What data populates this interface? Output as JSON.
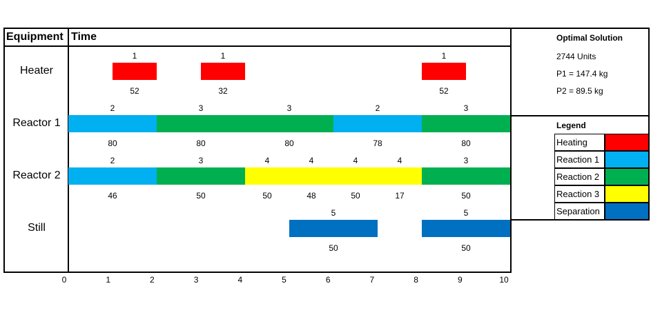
{
  "headers": {
    "equipment": "Equipment",
    "time": "Time"
  },
  "solution": {
    "title": "Optimal Solution",
    "lines": [
      "2744 Units",
      "P1 = 147.4 kg",
      "P2 = 89.5 kg"
    ]
  },
  "legend": {
    "title": "Legend",
    "items": [
      {
        "name": "Heating",
        "color": "#ff0000"
      },
      {
        "name": "Reaction 1",
        "color": "#00b0f0"
      },
      {
        "name": "Reaction 2",
        "color": "#00b050"
      },
      {
        "name": "Reaction 3",
        "color": "#ffff00"
      },
      {
        "name": "Separation",
        "color": "#0070c0"
      }
    ]
  },
  "chart_data": {
    "type": "gantt",
    "xlim": [
      0,
      10
    ],
    "x_ticks": [
      "0",
      "1",
      "2",
      "3",
      "4",
      "5",
      "6",
      "7",
      "8",
      "9",
      "10"
    ],
    "rows": [
      {
        "name": "Heater",
        "tasks": [
          {
            "start": 1,
            "end": 2,
            "task": "1",
            "amount": "52",
            "color": "#ff0000"
          },
          {
            "start": 3,
            "end": 4,
            "task": "1",
            "amount": "32",
            "color": "#ff0000"
          },
          {
            "start": 8,
            "end": 9,
            "task": "1",
            "amount": "52",
            "color": "#ff0000"
          }
        ]
      },
      {
        "name": "Reactor 1",
        "tasks": [
          {
            "start": 0,
            "end": 2,
            "task": "2",
            "amount": "80",
            "color": "#00b0f0"
          },
          {
            "start": 2,
            "end": 4,
            "task": "3",
            "amount": "80",
            "color": "#00b050"
          },
          {
            "start": 4,
            "end": 6,
            "task": "3",
            "amount": "80",
            "color": "#00b050"
          },
          {
            "start": 6,
            "end": 8,
            "task": "2",
            "amount": "78",
            "color": "#00b0f0"
          },
          {
            "start": 8,
            "end": 10,
            "task": "3",
            "amount": "80",
            "color": "#00b050"
          }
        ]
      },
      {
        "name": "Reactor 2",
        "tasks": [
          {
            "start": 0,
            "end": 2,
            "task": "2",
            "amount": "46",
            "color": "#00b0f0"
          },
          {
            "start": 2,
            "end": 4,
            "task": "3",
            "amount": "50",
            "color": "#00b050"
          },
          {
            "start": 4,
            "end": 5,
            "task": "4",
            "amount": "50",
            "color": "#ffff00"
          },
          {
            "start": 5,
            "end": 6,
            "task": "4",
            "amount": "48",
            "color": "#ffff00"
          },
          {
            "start": 6,
            "end": 7,
            "task": "4",
            "amount": "50",
            "color": "#ffff00"
          },
          {
            "start": 7,
            "end": 8,
            "task": "4",
            "amount": "17",
            "color": "#ffff00"
          },
          {
            "start": 8,
            "end": 10,
            "task": "3",
            "amount": "50",
            "color": "#00b050"
          }
        ]
      },
      {
        "name": "Still",
        "tasks": [
          {
            "start": 5,
            "end": 7,
            "task": "5",
            "amount": "50",
            "color": "#0070c0"
          },
          {
            "start": 8,
            "end": 10,
            "task": "5",
            "amount": "50",
            "color": "#0070c0"
          }
        ]
      }
    ]
  }
}
